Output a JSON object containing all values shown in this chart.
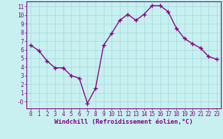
{
  "x": [
    0,
    1,
    2,
    3,
    4,
    5,
    6,
    7,
    8,
    9,
    10,
    11,
    12,
    13,
    14,
    15,
    16,
    17,
    18,
    19,
    20,
    21,
    22,
    23
  ],
  "y": [
    6.5,
    5.9,
    4.7,
    3.9,
    3.9,
    3.0,
    2.7,
    -0.2,
    1.5,
    6.5,
    7.9,
    9.4,
    10.1,
    9.4,
    10.1,
    11.1,
    11.1,
    10.4,
    8.5,
    7.3,
    6.7,
    6.2,
    5.2,
    4.9
  ],
  "line_color": "#800080",
  "marker": "+",
  "marker_size": 4,
  "marker_lw": 1.0,
  "bg_color": "#c8f0f0",
  "grid_color": "#a0d8d8",
  "xlabel": "Windchill (Refroidissement éolien,°C)",
  "ylim": [
    -0.8,
    11.6
  ],
  "xlim": [
    -0.5,
    23.5
  ],
  "yticks": [
    0,
    1,
    2,
    3,
    4,
    5,
    6,
    7,
    8,
    9,
    10,
    11
  ],
  "xticks": [
    0,
    1,
    2,
    3,
    4,
    5,
    6,
    7,
    8,
    9,
    10,
    11,
    12,
    13,
    14,
    15,
    16,
    17,
    18,
    19,
    20,
    21,
    22,
    23
  ],
  "tick_fontsize": 5.5,
  "xlabel_fontsize": 6.5,
  "line_width": 1.0,
  "text_color": "#800080",
  "spine_color": "#800080"
}
